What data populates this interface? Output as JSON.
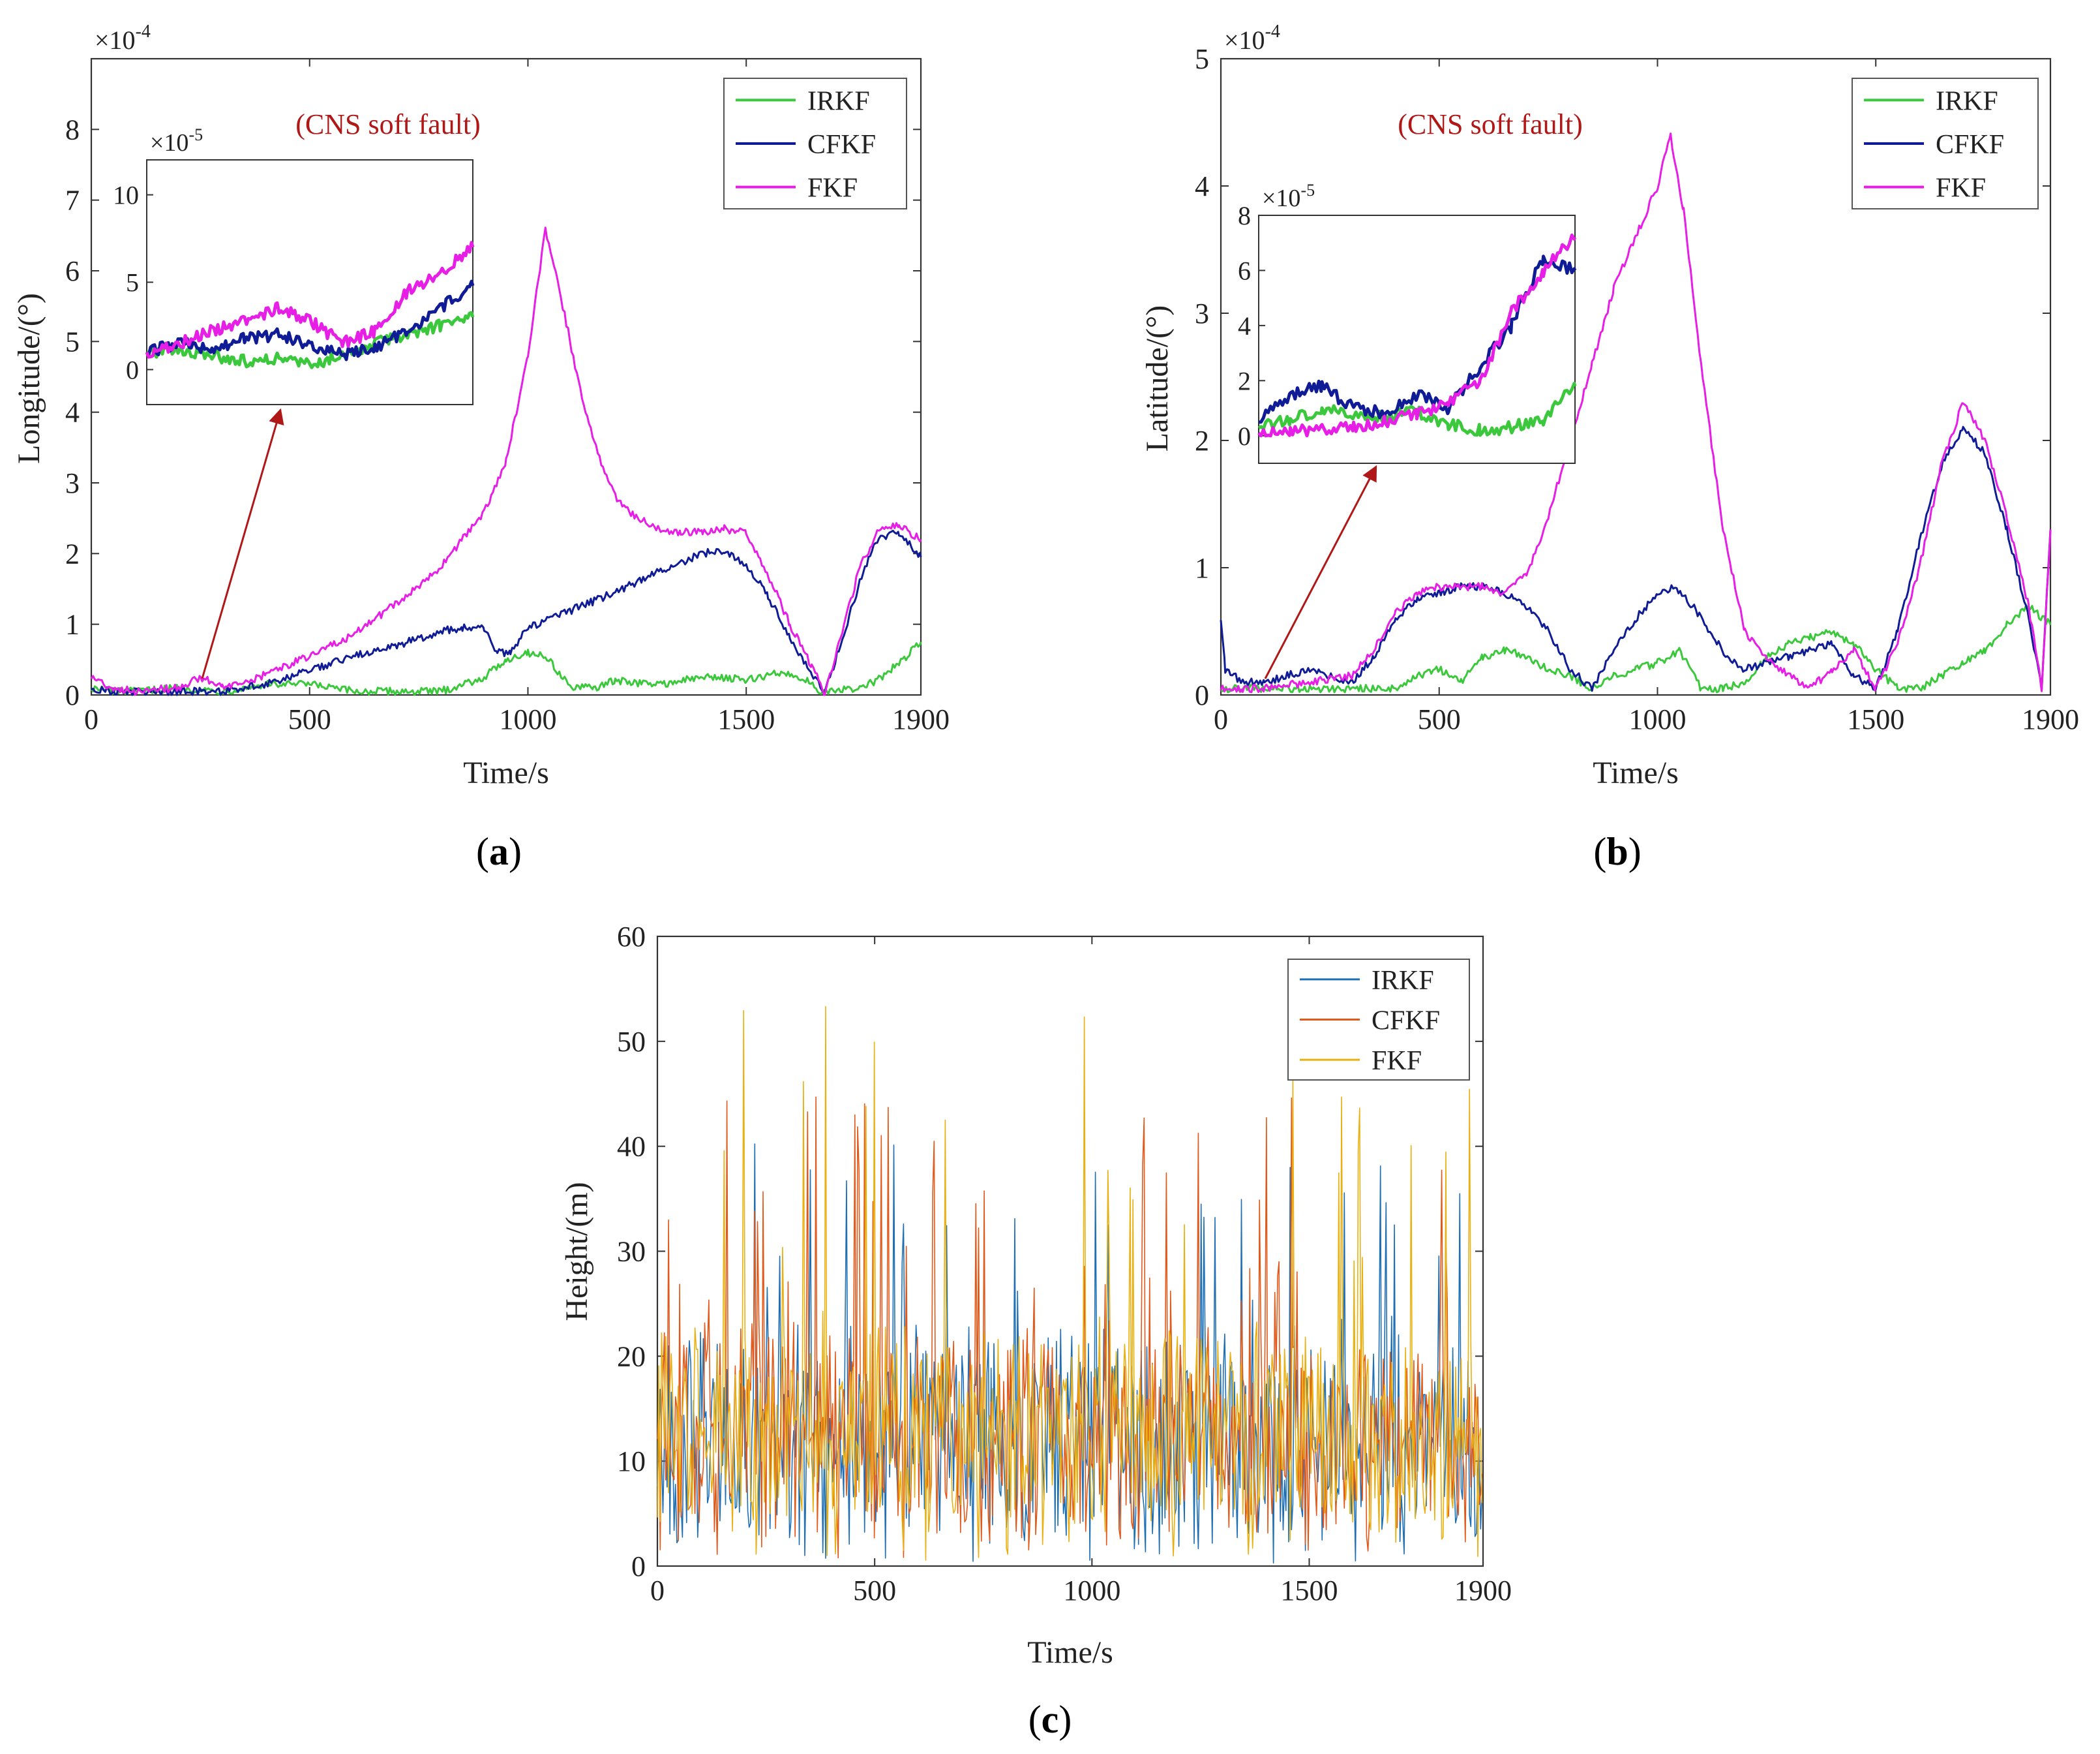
{
  "figure": {
    "panel_labels": [
      "a",
      "b",
      "c"
    ],
    "annotation_text": "(CNS soft fault)"
  },
  "colors": {
    "IRKF_ab": "#3cc83c",
    "CFKF_ab": "#0f1c96",
    "FKF_ab": "#e61ee6",
    "IRKF_c": "#1f6fb4",
    "CFKF_c": "#e0591a",
    "FKF_c": "#e8b012",
    "annotation": "#b01818",
    "arrow": "#b01818"
  },
  "chart_data": [
    {
      "id": "a",
      "type": "line",
      "xlabel": "Time/s",
      "ylabel": "Longitude/(°)",
      "exponent_label": "×10",
      "exponent_power": "-4",
      "xlim": [
        0,
        1900
      ],
      "ylim": [
        0,
        9
      ],
      "xticks": [
        0,
        500,
        1000,
        1500,
        1900
      ],
      "yticks": [
        0,
        1,
        2,
        3,
        4,
        5,
        6,
        7,
        8
      ],
      "legend": [
        "IRKF",
        "CFKF",
        "FKF"
      ],
      "legend_position": "top-right",
      "series": [
        {
          "name": "IRKF",
          "x": [
            0,
            50,
            100,
            200,
            300,
            400,
            500,
            550,
            600,
            700,
            800,
            900,
            950,
            1000,
            1040,
            1100,
            1150,
            1200,
            1300,
            1400,
            1450,
            1500,
            1560,
            1600,
            1640,
            1680,
            1700,
            1760,
            1800,
            1850,
            1900
          ],
          "y": [
            0.1,
            0.05,
            0.05,
            0.1,
            0.05,
            0.15,
            0.15,
            0.1,
            0.05,
            0.05,
            0.05,
            0.25,
            0.5,
            0.6,
            0.55,
            0.1,
            0.1,
            0.2,
            0.15,
            0.25,
            0.25,
            0.2,
            0.3,
            0.3,
            0.2,
            0.02,
            0.05,
            0.1,
            0.2,
            0.45,
            0.75
          ]
        },
        {
          "name": "CFKF",
          "x": [
            0,
            50,
            100,
            200,
            300,
            400,
            500,
            600,
            700,
            800,
            850,
            900,
            930,
            960,
            1000,
            1100,
            1200,
            1300,
            1400,
            1450,
            1500,
            1550,
            1600,
            1650,
            1680,
            1720,
            1760,
            1800,
            1850,
            1900
          ],
          "y": [
            0.1,
            0.05,
            0.05,
            0.05,
            0.05,
            0.15,
            0.35,
            0.55,
            0.7,
            0.9,
            0.95,
            0.95,
            0.6,
            0.6,
            0.95,
            1.2,
            1.45,
            1.75,
            2.0,
            2.05,
            1.85,
            1.4,
            0.8,
            0.3,
            0.02,
            0.8,
            1.6,
            2.2,
            2.3,
            1.95
          ]
        },
        {
          "name": "FKF",
          "x": [
            0,
            50,
            100,
            200,
            250,
            300,
            350,
            400,
            500,
            600,
            700,
            800,
            900,
            950,
            1000,
            1040,
            1080,
            1120,
            1160,
            1200,
            1250,
            1300,
            1350,
            1400,
            1450,
            1500,
            1550,
            1600,
            1650,
            1680,
            1720,
            1760,
            1800,
            1850,
            1900
          ],
          "y": [
            0.25,
            0.1,
            0.05,
            0.1,
            0.25,
            0.1,
            0.15,
            0.3,
            0.55,
            0.85,
            1.3,
            1.8,
            2.6,
            3.3,
            4.8,
            6.6,
            5.5,
            4.3,
            3.4,
            2.8,
            2.5,
            2.35,
            2.3,
            2.3,
            2.35,
            2.3,
            1.7,
            1.0,
            0.4,
            0.02,
            0.9,
            1.8,
            2.3,
            2.4,
            2.2
          ]
        }
      ],
      "inset": {
        "exponent_label": "×10",
        "exponent_power": "-5",
        "ylim": [
          -2,
          12
        ],
        "yticks": [
          0,
          5,
          10
        ],
        "series": [
          {
            "name": "IRKF",
            "x": [
              0,
              25,
              50,
              75,
              100,
              125,
              150,
              175,
              200,
              225,
              250
            ],
            "y": [
              1,
              1.2,
              0.8,
              0.5,
              0.6,
              0.3,
              0.8,
              1.5,
              2.0,
              2.5,
              3.0
            ]
          },
          {
            "name": "CFKF",
            "x": [
              0,
              25,
              50,
              75,
              100,
              125,
              150,
              175,
              200,
              225,
              250
            ],
            "y": [
              1,
              1.5,
              1.2,
              1.8,
              2.0,
              1.4,
              0.8,
              1.2,
              2.2,
              3.5,
              4.8
            ]
          },
          {
            "name": "FKF",
            "x": [
              0,
              25,
              50,
              75,
              100,
              125,
              150,
              175,
              200,
              225,
              250
            ],
            "y": [
              1,
              1.5,
              2.2,
              2.8,
              3.5,
              2.8,
              1.5,
              2.2,
              4.5,
              5.5,
              7.0
            ]
          }
        ]
      }
    },
    {
      "id": "b",
      "type": "line",
      "xlabel": "Time/s",
      "ylabel": "Latitude/(°)",
      "exponent_label": "×10",
      "exponent_power": "-4",
      "xlim": [
        0,
        1900
      ],
      "ylim": [
        0,
        5
      ],
      "xticks": [
        0,
        500,
        1000,
        1500,
        1900
      ],
      "yticks": [
        0,
        1,
        2,
        3,
        4,
        5
      ],
      "legend": [
        "IRKF",
        "CFKF",
        "FKF"
      ],
      "legend_position": "top-right",
      "series": [
        {
          "name": "IRKF",
          "x": [
            0,
            100,
            200,
            300,
            400,
            450,
            500,
            550,
            600,
            650,
            700,
            750,
            800,
            850,
            900,
            950,
            1000,
            1050,
            1100,
            1150,
            1200,
            1250,
            1300,
            1350,
            1400,
            1450,
            1500,
            1550,
            1600,
            1650,
            1700,
            1750,
            1800,
            1850,
            1900
          ],
          "y": [
            0.05,
            0.05,
            0.05,
            0.05,
            0.05,
            0.15,
            0.2,
            0.1,
            0.3,
            0.35,
            0.3,
            0.2,
            0.15,
            0.05,
            0.15,
            0.2,
            0.25,
            0.35,
            0.05,
            0.05,
            0.1,
            0.3,
            0.4,
            0.45,
            0.5,
            0.4,
            0.2,
            0.05,
            0.05,
            0.15,
            0.25,
            0.35,
            0.55,
            0.7,
            0.55
          ]
        },
        {
          "name": "CFKF",
          "x": [
            0,
            10,
            50,
            100,
            200,
            300,
            350,
            400,
            450,
            500,
            550,
            600,
            650,
            700,
            750,
            800,
            850,
            900,
            950,
            1000,
            1040,
            1080,
            1120,
            1160,
            1200,
            1250,
            1300,
            1350,
            1400,
            1450,
            1500,
            1550,
            1600,
            1650,
            1700,
            1750,
            1800,
            1850,
            1880,
            1900
          ],
          "y": [
            0.6,
            0.2,
            0.1,
            0.1,
            0.2,
            0.1,
            0.3,
            0.6,
            0.75,
            0.8,
            0.85,
            0.85,
            0.8,
            0.7,
            0.5,
            0.2,
            0.05,
            0.35,
            0.6,
            0.8,
            0.85,
            0.7,
            0.5,
            0.3,
            0.2,
            0.25,
            0.3,
            0.35,
            0.4,
            0.15,
            0.05,
            0.5,
            1.2,
            1.8,
            2.1,
            1.9,
            1.3,
            0.6,
            0.05,
            1.3
          ]
        },
        {
          "name": "FKF",
          "x": [
            0,
            50,
            100,
            200,
            300,
            350,
            400,
            450,
            500,
            550,
            600,
            650,
            700,
            750,
            800,
            850,
            900,
            950,
            1000,
            1030,
            1060,
            1100,
            1150,
            1200,
            1250,
            1300,
            1350,
            1400,
            1450,
            1500,
            1550,
            1600,
            1650,
            1700,
            1750,
            1800,
            1850,
            1880,
            1900
          ],
          "y": [
            0.05,
            0.05,
            0.05,
            0.1,
            0.15,
            0.35,
            0.65,
            0.8,
            0.85,
            0.85,
            0.85,
            0.8,
            0.95,
            1.4,
            2.0,
            2.6,
            3.2,
            3.6,
            4.0,
            4.4,
            3.8,
            2.6,
            1.3,
            0.5,
            0.3,
            0.15,
            0.05,
            0.2,
            0.35,
            0.05,
            0.4,
            1.0,
            1.8,
            2.3,
            2.0,
            1.4,
            0.7,
            0.05,
            1.3
          ]
        }
      ],
      "inset": {
        "exponent_label": "×10",
        "exponent_power": "-5",
        "ylim": [
          -1,
          8
        ],
        "yticks": [
          0,
          2,
          4,
          6,
          8
        ],
        "series": [
          {
            "name": "IRKF",
            "x": [
              0,
              20,
              40,
              60,
              80,
              100,
              120,
              140,
              160,
              180,
              200
            ],
            "y": [
              0.3,
              0.6,
              0.9,
              0.8,
              0.7,
              0.9,
              0.4,
              0.2,
              0.3,
              0.6,
              1.8
            ]
          },
          {
            "name": "CFKF",
            "x": [
              0,
              20,
              40,
              60,
              80,
              100,
              120,
              140,
              160,
              180,
              200
            ],
            "y": [
              0.5,
              1.5,
              1.8,
              1.0,
              0.8,
              1.5,
              1.0,
              2.5,
              4.0,
              6.5,
              6.0
            ]
          },
          {
            "name": "FKF",
            "x": [
              0,
              20,
              40,
              60,
              80,
              100,
              120,
              140,
              160,
              180,
              200
            ],
            "y": [
              0.1,
              0.2,
              0.2,
              0.3,
              0.5,
              0.8,
              1.2,
              2.0,
              4.5,
              6.0,
              7.2
            ]
          }
        ]
      }
    },
    {
      "id": "c",
      "type": "line",
      "xlabel": "Time/s",
      "ylabel": "Height/(m)",
      "xlim": [
        0,
        1900
      ],
      "ylim": [
        0,
        60
      ],
      "xticks": [
        0,
        500,
        1000,
        1500,
        1900
      ],
      "yticks": [
        0,
        10,
        20,
        30,
        40,
        50,
        60
      ],
      "legend": [
        "IRKF",
        "CFKF",
        "FKF"
      ],
      "legend_position": "top-right",
      "noise_series": true,
      "series": [
        {
          "name": "IRKF",
          "typical_range": [
            0,
            43
          ]
        },
        {
          "name": "CFKF",
          "typical_range": [
            0,
            45
          ]
        },
        {
          "name": "FKF",
          "typical_range": [
            0,
            55
          ]
        }
      ]
    }
  ]
}
